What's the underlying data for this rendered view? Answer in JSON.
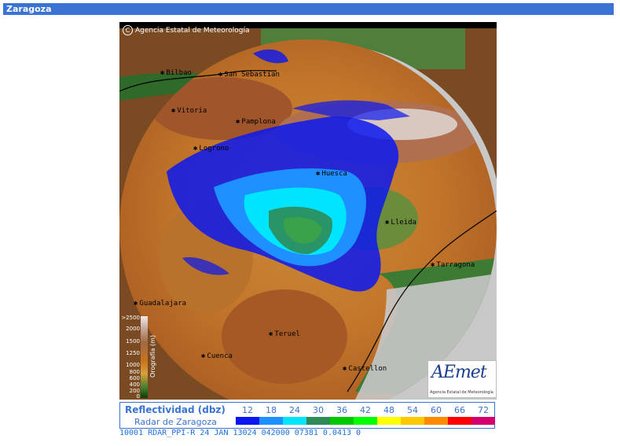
{
  "header": {
    "title": "Zaragoza"
  },
  "map": {
    "copyright": "Agencia Estatal de Meteorología",
    "cities": [
      {
        "id": "bilbao",
        "name": "Bilbao"
      },
      {
        "id": "san-sebastian",
        "name": "San Sebastian"
      },
      {
        "id": "vitoria",
        "name": "Vitoria"
      },
      {
        "id": "pamplona",
        "name": "Pamplona"
      },
      {
        "id": "logrono",
        "name": "Logrono"
      },
      {
        "id": "huesca",
        "name": "Huesca"
      },
      {
        "id": "lleida",
        "name": "Lleida"
      },
      {
        "id": "tarragona",
        "name": "Tarragona"
      },
      {
        "id": "guadalajara",
        "name": "Guadalajara"
      },
      {
        "id": "teruel",
        "name": "Teruel"
      },
      {
        "id": "cuenca",
        "name": "Cuenca"
      },
      {
        "id": "castellon",
        "name": "Castellon"
      }
    ],
    "orography_legend": {
      "title": "Orografía (m)",
      "labels": [
        ">2500",
        "2000",
        "1500",
        "1250",
        "1000",
        "800",
        "600",
        "400",
        "200",
        "0"
      ]
    },
    "logo": {
      "text": "AEmet",
      "subtitle": "Agencia Estatal de Meteorología"
    }
  },
  "reflectivity": {
    "title": "Reflectividad (dbz)",
    "subtitle": "Radar de Zaragoza",
    "scale": [
      {
        "value": "12",
        "color": "#0a17f0"
      },
      {
        "value": "18",
        "color": "#1e90ff"
      },
      {
        "value": "24",
        "color": "#00e5ff"
      },
      {
        "value": "30",
        "color": "#2e8b57"
      },
      {
        "value": "36",
        "color": "#00c800"
      },
      {
        "value": "42",
        "color": "#00ff00"
      },
      {
        "value": "48",
        "color": "#ffff00"
      },
      {
        "value": "54",
        "color": "#ffc800"
      },
      {
        "value": "60",
        "color": "#ff8c00"
      },
      {
        "value": "66",
        "color": "#ff0000"
      },
      {
        "value": "72",
        "color": "#d4006e"
      }
    ]
  },
  "ticker": {
    "text": "10001 RDAR_PPI-R   24 JAN 13024 042000 07381  0.0413 0"
  },
  "colors": {
    "accent": "#3a73d4",
    "outside_range": "#c8c8c8",
    "sea": "#000000"
  }
}
